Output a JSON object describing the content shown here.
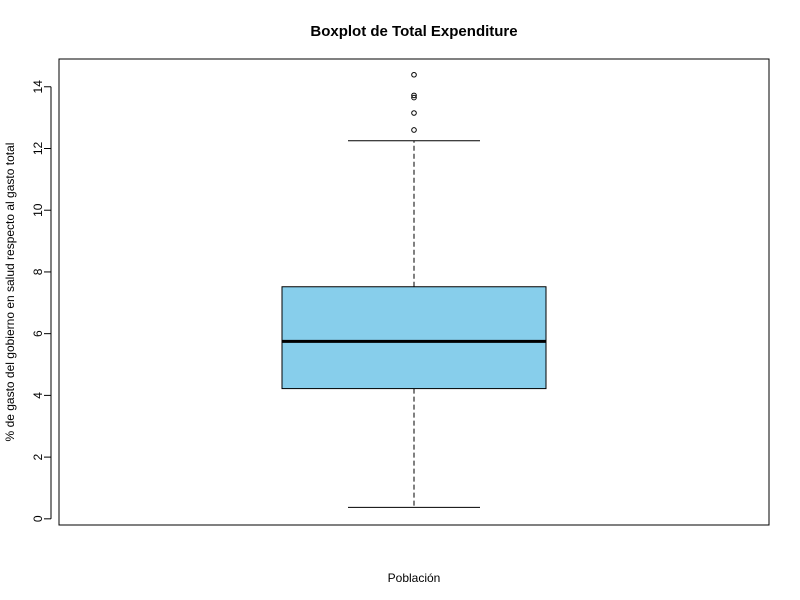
{
  "chart_data": {
    "type": "boxplot",
    "title": "Boxplot de Total Expenditure",
    "xlabel": "Población",
    "ylabel": "% de gasto del gobierno en salud respecto al gasto total",
    "ylim": [
      -0.2,
      14.9
    ],
    "yticks": [
      0,
      2,
      4,
      6,
      8,
      10,
      12,
      14
    ],
    "grid": false,
    "box": {
      "whisker_low": 0.37,
      "q1": 4.22,
      "median": 5.75,
      "q3": 7.52,
      "whisker_high": 12.25,
      "outliers": [
        12.6,
        13.15,
        13.65,
        13.72,
        14.39
      ]
    },
    "colors": {
      "box_fill": "#87CEEB",
      "line": "#000000"
    }
  }
}
